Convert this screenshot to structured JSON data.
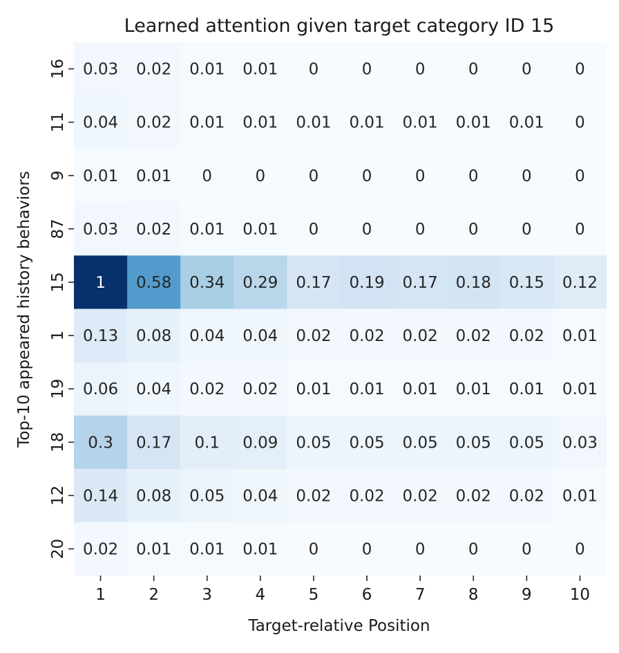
{
  "chart_data": {
    "type": "heatmap",
    "title": "Learned attention given target category ID 15",
    "xlabel": "Target-relative Position",
    "ylabel": "Top-10 appeared history behaviors",
    "x_categories": [
      "1",
      "2",
      "3",
      "4",
      "5",
      "6",
      "7",
      "8",
      "9",
      "10"
    ],
    "y_categories": [
      "16",
      "11",
      "9",
      "87",
      "15",
      "1",
      "19",
      "18",
      "12",
      "20"
    ],
    "values": [
      [
        0.03,
        0.02,
        0.01,
        0.01,
        0,
        0,
        0,
        0,
        0,
        0
      ],
      [
        0.04,
        0.02,
        0.01,
        0.01,
        0.01,
        0.01,
        0.01,
        0.01,
        0.01,
        0
      ],
      [
        0.01,
        0.01,
        0,
        0,
        0,
        0,
        0,
        0,
        0,
        0
      ],
      [
        0.03,
        0.02,
        0.01,
        0.01,
        0,
        0,
        0,
        0,
        0,
        0
      ],
      [
        1,
        0.58,
        0.34,
        0.29,
        0.17,
        0.19,
        0.17,
        0.18,
        0.15,
        0.12
      ],
      [
        0.13,
        0.08,
        0.04,
        0.04,
        0.02,
        0.02,
        0.02,
        0.02,
        0.02,
        0.01
      ],
      [
        0.06,
        0.04,
        0.02,
        0.02,
        0.01,
        0.01,
        0.01,
        0.01,
        0.01,
        0.01
      ],
      [
        0.3,
        0.17,
        0.1,
        0.09,
        0.05,
        0.05,
        0.05,
        0.05,
        0.05,
        0.03
      ],
      [
        0.14,
        0.08,
        0.05,
        0.04,
        0.02,
        0.02,
        0.02,
        0.02,
        0.02,
        0.01
      ],
      [
        0.02,
        0.01,
        0.01,
        0.01,
        0,
        0,
        0,
        0,
        0,
        0
      ]
    ],
    "value_range": [
      0,
      1
    ],
    "colormap": "Blues",
    "colorbar": false,
    "grid": false,
    "annotations": true
  }
}
